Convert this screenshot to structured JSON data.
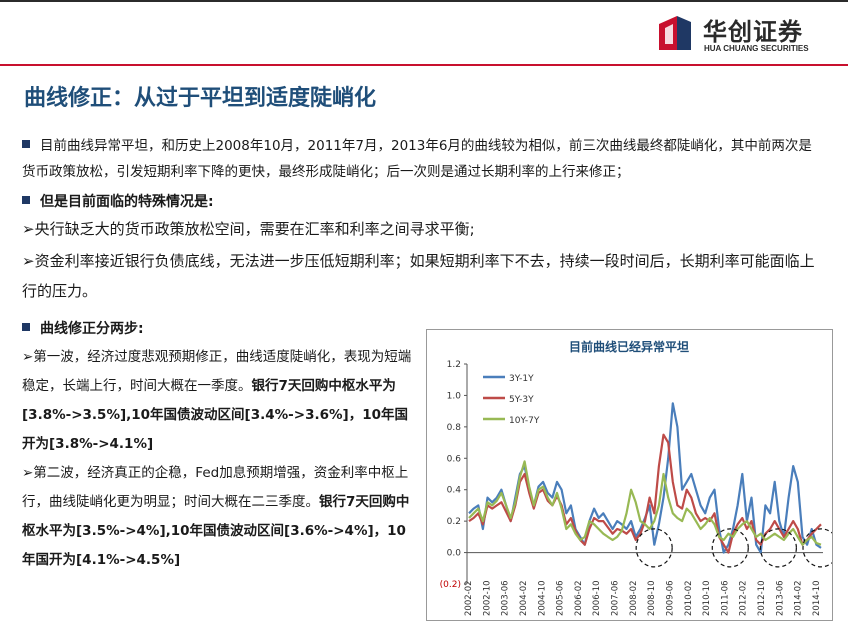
{
  "header": {
    "logo_cn": "华创证券",
    "logo_en": "HUA CHUANG SECURITIES",
    "title": "曲线修正：从过于平坦到适度陡峭化"
  },
  "body": {
    "p1": "目前曲线异常平坦，和历史上2008年10月，2011年7月，2013年6月的曲线较为相似，前三次曲线最终都陡峭化，其中前两次是货币政策放松，引发短期利率下降的更快，最终形成陡峭化；后一次则是通过长期利率的上行来修正；",
    "p2": "但是目前面临的特殊情况是:",
    "p3": "➢央行缺乏大的货币政策放松空间，需要在汇率和利率之间寻求平衡;",
    "p4": "➢资金利率接近银行负债底线，无法进一步压低短期利率；如果短期利率下不去，持续一段时间后，长期利率可能面临上行的压力。",
    "p5": "曲线修正分两步:",
    "wave1_a": "➢第一波，经济过度悲观预期修正，曲线适度陡峭化，表现为短端稳定，长端上行，时间大概在一季度。",
    "wave1_b": "银行7天回购中枢水平为[3.8%->3.5%],10年国债波动区间[3.4%->3.6%]，10年国开为[3.8%->4.1%]",
    "wave2_a": "➢第二波，经济真正的企稳，Fed加息预期增强，资金利率中枢上行，曲线陡峭化更为明显；时间大概在二三季度。",
    "wave2_b": "银行7天回购中枢水平为[3.5%->4%],10年国债波动区间[3.6%->4%]，10年国开为[4.1%->4.5%]"
  },
  "colors": {
    "title": "#1f4e79",
    "accent_red": "#c8102e",
    "s1": "#4a7ebb",
    "s2": "#be4b48",
    "s3": "#98b954"
  },
  "chart_data": {
    "type": "line",
    "title": "目前曲线已经异常平坦",
    "ylim": [
      -0.2,
      1.2
    ],
    "ytick_labels": [
      "(0.2)",
      "0.0",
      "0.2",
      "0.4",
      "0.6",
      "0.8",
      "1.0",
      "1.2"
    ],
    "yticks": [
      -0.2,
      0.0,
      0.2,
      0.4,
      0.6,
      0.8,
      1.0,
      1.2
    ],
    "x_labels": [
      "2002-02",
      "2002-10",
      "2003-06",
      "2004-02",
      "2004-10",
      "2005-06",
      "2006-02",
      "2006-10",
      "2007-06",
      "2008-02",
      "2008-10",
      "2009-06",
      "2010-02",
      "2010-10",
      "2011-06",
      "2012-02",
      "2012-10",
      "2013-06",
      "2014-02",
      "2014-10"
    ],
    "legend_position": "top-left",
    "series": [
      {
        "name": "3Y-1Y",
        "color": "#4a7ebb",
        "values": [
          0.25,
          0.28,
          0.3,
          0.15,
          0.35,
          0.32,
          0.35,
          0.4,
          0.3,
          0.2,
          0.35,
          0.5,
          0.55,
          0.4,
          0.3,
          0.42,
          0.45,
          0.38,
          0.35,
          0.45,
          0.4,
          0.25,
          0.3,
          0.15,
          0.1,
          0.05,
          0.2,
          0.28,
          0.22,
          0.25,
          0.2,
          0.15,
          0.2,
          0.18,
          0.15,
          0.2,
          0.1,
          0.15,
          0.22,
          0.3,
          0.05,
          0.18,
          0.35,
          0.6,
          0.95,
          0.8,
          0.4,
          0.45,
          0.5,
          0.4,
          0.3,
          0.25,
          0.35,
          0.4,
          0.15,
          0.0,
          0.05,
          0.15,
          0.3,
          0.5,
          0.2,
          0.35,
          0.05,
          0.0,
          0.3,
          0.25,
          0.45,
          0.2,
          0.1,
          0.35,
          0.55,
          0.45,
          0.1,
          0.05,
          0.15,
          0.05,
          0.03
        ]
      },
      {
        "name": "5Y-3Y",
        "color": "#be4b48",
        "values": [
          0.2,
          0.22,
          0.25,
          0.18,
          0.3,
          0.28,
          0.3,
          0.32,
          0.26,
          0.2,
          0.3,
          0.45,
          0.5,
          0.38,
          0.28,
          0.38,
          0.4,
          0.33,
          0.3,
          0.36,
          0.3,
          0.18,
          0.22,
          0.14,
          0.08,
          0.05,
          0.15,
          0.22,
          0.2,
          0.2,
          0.16,
          0.12,
          0.15,
          0.14,
          0.12,
          0.15,
          0.08,
          0.12,
          0.2,
          0.35,
          0.25,
          0.55,
          0.75,
          0.7,
          0.45,
          0.3,
          0.28,
          0.4,
          0.35,
          0.25,
          0.2,
          0.22,
          0.2,
          0.25,
          0.1,
          0.05,
          0.0,
          0.12,
          0.18,
          0.22,
          0.15,
          0.2,
          0.08,
          0.05,
          0.12,
          0.15,
          0.2,
          0.15,
          0.1,
          0.15,
          0.2,
          0.15,
          0.05,
          0.08,
          0.12,
          0.15,
          0.18
        ]
      },
      {
        "name": "10Y-7Y",
        "color": "#98b954",
        "values": [
          0.22,
          0.25,
          0.28,
          0.2,
          0.32,
          0.3,
          0.33,
          0.38,
          0.3,
          0.22,
          0.32,
          0.48,
          0.58,
          0.42,
          0.3,
          0.4,
          0.42,
          0.35,
          0.3,
          0.38,
          0.28,
          0.15,
          0.18,
          0.12,
          0.08,
          0.1,
          0.2,
          0.18,
          0.15,
          0.12,
          0.1,
          0.08,
          0.1,
          0.14,
          0.25,
          0.4,
          0.32,
          0.2,
          0.18,
          0.15,
          0.2,
          0.3,
          0.5,
          0.35,
          0.25,
          0.22,
          0.2,
          0.28,
          0.25,
          0.2,
          0.15,
          0.18,
          0.22,
          0.18,
          0.1,
          0.08,
          0.12,
          0.1,
          0.15,
          0.18,
          0.2,
          0.15,
          0.1,
          0.12,
          0.08,
          0.1,
          0.12,
          0.1,
          0.08,
          0.12,
          0.15,
          0.1,
          0.05,
          0.08,
          0.1,
          0.06,
          0.05
        ]
      }
    ],
    "circled_periods": [
      "2008-10",
      "2011-07",
      "2013-06",
      "2014-10"
    ]
  }
}
